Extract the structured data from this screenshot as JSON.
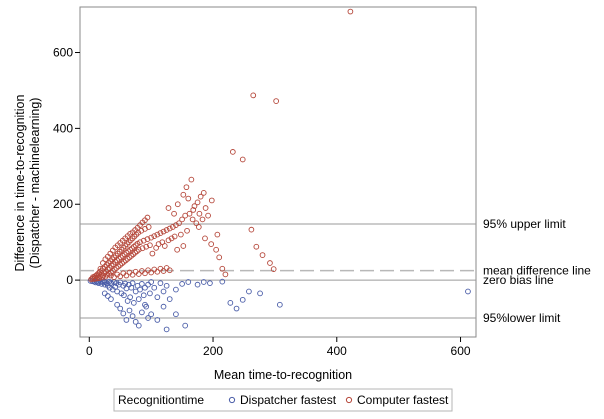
{
  "chart_data": {
    "type": "scatter",
    "xlabel": "Mean time-to-recognition",
    "ylabel_lines": [
      "Difference in time-to-recognition",
      "(Dispatcher - machinelearning)"
    ],
    "xlim": [
      -15,
      625
    ],
    "ylim": [
      -150,
      720
    ],
    "xticks": [
      0,
      200,
      400,
      600
    ],
    "yticks": [
      0,
      200,
      400,
      600
    ],
    "grid": false,
    "legend": {
      "placement": "bottom",
      "title": "Recognitiontime",
      "entries": [
        {
          "name": "Dispatcher fastest",
          "color": "#4a5da8"
        },
        {
          "name": "Computer fastest",
          "color": "#b5473a"
        }
      ]
    },
    "reference_lines": [
      {
        "name": "95% upper limit",
        "y": 148,
        "style": "solid"
      },
      {
        "name": "mean difference line",
        "y": 25,
        "style": "dashed"
      },
      {
        "name": "zero bias line",
        "y": 0,
        "style": "solid"
      },
      {
        "name": "95%lower limit",
        "y": -100,
        "style": "solid"
      }
    ],
    "series": [
      {
        "name": "Dispatcher fastest",
        "color": "#4a5da8",
        "points": [
          [
            2,
            -2
          ],
          [
            5,
            -3
          ],
          [
            8,
            -4
          ],
          [
            10,
            -6
          ],
          [
            12,
            -3
          ],
          [
            14,
            -5
          ],
          [
            15,
            -8
          ],
          [
            18,
            -4
          ],
          [
            20,
            -10
          ],
          [
            22,
            -6
          ],
          [
            24,
            -3
          ],
          [
            25,
            -12
          ],
          [
            26,
            -5
          ],
          [
            28,
            -8
          ],
          [
            30,
            -15
          ],
          [
            32,
            -4
          ],
          [
            33,
            -20
          ],
          [
            35,
            -7
          ],
          [
            36,
            -10
          ],
          [
            38,
            -25
          ],
          [
            40,
            -5
          ],
          [
            42,
            -18
          ],
          [
            44,
            -8
          ],
          [
            45,
            -30
          ],
          [
            48,
            -12
          ],
          [
            50,
            -6
          ],
          [
            52,
            -35
          ],
          [
            55,
            -15
          ],
          [
            56,
            -40
          ],
          [
            58,
            -9
          ],
          [
            60,
            -22
          ],
          [
            62,
            -55
          ],
          [
            64,
            -12
          ],
          [
            66,
            -45
          ],
          [
            68,
            -20
          ],
          [
            70,
            -8
          ],
          [
            72,
            -60
          ],
          [
            75,
            -30
          ],
          [
            78,
            -15
          ],
          [
            80,
            -50
          ],
          [
            82,
            -25
          ],
          [
            85,
            -10
          ],
          [
            88,
            -40
          ],
          [
            90,
            -20
          ],
          [
            92,
            -70
          ],
          [
            95,
            -12
          ],
          [
            98,
            -35
          ],
          [
            100,
            -5
          ],
          [
            105,
            -20
          ],
          [
            110,
            -45
          ],
          [
            115,
            -8
          ],
          [
            120,
            -30
          ],
          [
            125,
            -15
          ],
          [
            130,
            -50
          ],
          [
            140,
            -25
          ],
          [
            150,
            -10
          ],
          [
            160,
            -5
          ],
          [
            175,
            -12
          ],
          [
            185,
            -5
          ],
          [
            195,
            -8
          ],
          [
            215,
            -4
          ],
          [
            228,
            -60
          ],
          [
            238,
            -75
          ],
          [
            248,
            -52
          ],
          [
            258,
            -30
          ],
          [
            276,
            -35
          ],
          [
            308,
            -65
          ],
          [
            612,
            -30
          ],
          [
            65,
            -80
          ],
          [
            70,
            -95
          ],
          [
            75,
            -110
          ],
          [
            85,
            -85
          ],
          [
            95,
            -100
          ],
          [
            60,
            -105
          ],
          [
            80,
            -120
          ],
          [
            100,
            -90
          ],
          [
            125,
            -130
          ],
          [
            140,
            -90
          ],
          [
            155,
            -120
          ],
          [
            45,
            -65
          ],
          [
            50,
            -75
          ],
          [
            35,
            -50
          ],
          [
            25,
            -35
          ],
          [
            30,
            -42
          ],
          [
            55,
            -88
          ],
          [
            120,
            -70
          ],
          [
            110,
            -105
          ],
          [
            90,
            -65
          ]
        ]
      },
      {
        "name": "Computer fastest",
        "color": "#b5473a",
        "points": [
          [
            3,
            2
          ],
          [
            5,
            4
          ],
          [
            6,
            8
          ],
          [
            8,
            3
          ],
          [
            9,
            10
          ],
          [
            10,
            6
          ],
          [
            11,
            12
          ],
          [
            12,
            4
          ],
          [
            13,
            15
          ],
          [
            14,
            8
          ],
          [
            15,
            18
          ],
          [
            16,
            5
          ],
          [
            17,
            22
          ],
          [
            18,
            10
          ],
          [
            19,
            14
          ],
          [
            20,
            25
          ],
          [
            21,
            7
          ],
          [
            22,
            30
          ],
          [
            23,
            12
          ],
          [
            24,
            18
          ],
          [
            25,
            35
          ],
          [
            26,
            9
          ],
          [
            27,
            22
          ],
          [
            28,
            40
          ],
          [
            29,
            14
          ],
          [
            30,
            28
          ],
          [
            31,
            45
          ],
          [
            32,
            16
          ],
          [
            33,
            32
          ],
          [
            34,
            50
          ],
          [
            35,
            20
          ],
          [
            36,
            38
          ],
          [
            37,
            55
          ],
          [
            38,
            24
          ],
          [
            39,
            42
          ],
          [
            40,
            60
          ],
          [
            41,
            28
          ],
          [
            42,
            48
          ],
          [
            43,
            65
          ],
          [
            44,
            32
          ],
          [
            45,
            52
          ],
          [
            46,
            70
          ],
          [
            47,
            36
          ],
          [
            48,
            56
          ],
          [
            49,
            75
          ],
          [
            50,
            40
          ],
          [
            51,
            60
          ],
          [
            52,
            80
          ],
          [
            53,
            44
          ],
          [
            54,
            64
          ],
          [
            55,
            85
          ],
          [
            56,
            48
          ],
          [
            57,
            68
          ],
          [
            58,
            90
          ],
          [
            59,
            52
          ],
          [
            60,
            72
          ],
          [
            61,
            95
          ],
          [
            62,
            56
          ],
          [
            63,
            76
          ],
          [
            64,
            100
          ],
          [
            65,
            60
          ],
          [
            66,
            80
          ],
          [
            67,
            105
          ],
          [
            68,
            64
          ],
          [
            69,
            84
          ],
          [
            70,
            110
          ],
          [
            71,
            68
          ],
          [
            72,
            88
          ],
          [
            73,
            115
          ],
          [
            74,
            72
          ],
          [
            75,
            92
          ],
          [
            76,
            120
          ],
          [
            77,
            76
          ],
          [
            78,
            96
          ],
          [
            79,
            125
          ],
          [
            80,
            80
          ],
          [
            82,
            100
          ],
          [
            84,
            130
          ],
          [
            86,
            84
          ],
          [
            88,
            104
          ],
          [
            90,
            135
          ],
          [
            92,
            88
          ],
          [
            94,
            108
          ],
          [
            96,
            140
          ],
          [
            98,
            92
          ],
          [
            100,
            112
          ],
          [
            102,
            70
          ],
          [
            105,
            116
          ],
          [
            108,
            85
          ],
          [
            110,
            120
          ],
          [
            112,
            95
          ],
          [
            115,
            124
          ],
          [
            118,
            100
          ],
          [
            120,
            128
          ],
          [
            122,
            90
          ],
          [
            125,
            132
          ],
          [
            128,
            105
          ],
          [
            130,
            136
          ],
          [
            133,
            110
          ],
          [
            135,
            140
          ],
          [
            138,
            115
          ],
          [
            140,
            145
          ],
          [
            142,
            80
          ],
          [
            145,
            150
          ],
          [
            148,
            120
          ],
          [
            150,
            160
          ],
          [
            152,
            90
          ],
          [
            155,
            170
          ],
          [
            158,
            130
          ],
          [
            160,
            215
          ],
          [
            162,
            175
          ],
          [
            165,
            265
          ],
          [
            168,
            185
          ],
          [
            170,
            195
          ],
          [
            173,
            150
          ],
          [
            175,
            205
          ],
          [
            178,
            175
          ],
          [
            180,
            220
          ],
          [
            183,
            160
          ],
          [
            185,
            230
          ],
          [
            188,
            190
          ],
          [
            192,
            170
          ],
          [
            198,
            210
          ],
          [
            205,
            80
          ],
          [
            210,
            60
          ],
          [
            215,
            30
          ],
          [
            220,
            15
          ],
          [
            232,
            338
          ],
          [
            248,
            318
          ],
          [
            262,
            133
          ],
          [
            265,
            487
          ],
          [
            270,
            88
          ],
          [
            280,
            66
          ],
          [
            292,
            45
          ],
          [
            298,
            29
          ],
          [
            302,
            472
          ],
          [
            422,
            708
          ],
          [
            18,
            30
          ],
          [
            22,
            45
          ],
          [
            26,
            55
          ],
          [
            30,
            62
          ],
          [
            34,
            70
          ],
          [
            38,
            78
          ],
          [
            42,
            86
          ],
          [
            46,
            92
          ],
          [
            50,
            98
          ],
          [
            54,
            104
          ],
          [
            58,
            110
          ],
          [
            62,
            116
          ],
          [
            66,
            122
          ],
          [
            70,
            126
          ],
          [
            74,
            132
          ],
          [
            78,
            138
          ],
          [
            82,
            145
          ],
          [
            86,
            152
          ],
          [
            90,
            158
          ],
          [
            94,
            165
          ],
          [
            35,
            12
          ],
          [
            40,
            8
          ],
          [
            45,
            15
          ],
          [
            50,
            10
          ],
          [
            55,
            18
          ],
          [
            60,
            12
          ],
          [
            65,
            20
          ],
          [
            70,
            14
          ],
          [
            75,
            22
          ],
          [
            80,
            16
          ],
          [
            85,
            24
          ],
          [
            90,
            18
          ],
          [
            95,
            26
          ],
          [
            100,
            20
          ],
          [
            105,
            28
          ],
          [
            110,
            22
          ],
          [
            115,
            30
          ],
          [
            120,
            24
          ],
          [
            125,
            32
          ],
          [
            130,
            26
          ],
          [
            128,
            190
          ],
          [
            137,
            175
          ],
          [
            143,
            200
          ],
          [
            152,
            225
          ],
          [
            157,
            245
          ],
          [
            167,
            160
          ],
          [
            177,
            140
          ],
          [
            187,
            110
          ],
          [
            197,
            95
          ],
          [
            207,
            120
          ]
        ]
      }
    ]
  }
}
